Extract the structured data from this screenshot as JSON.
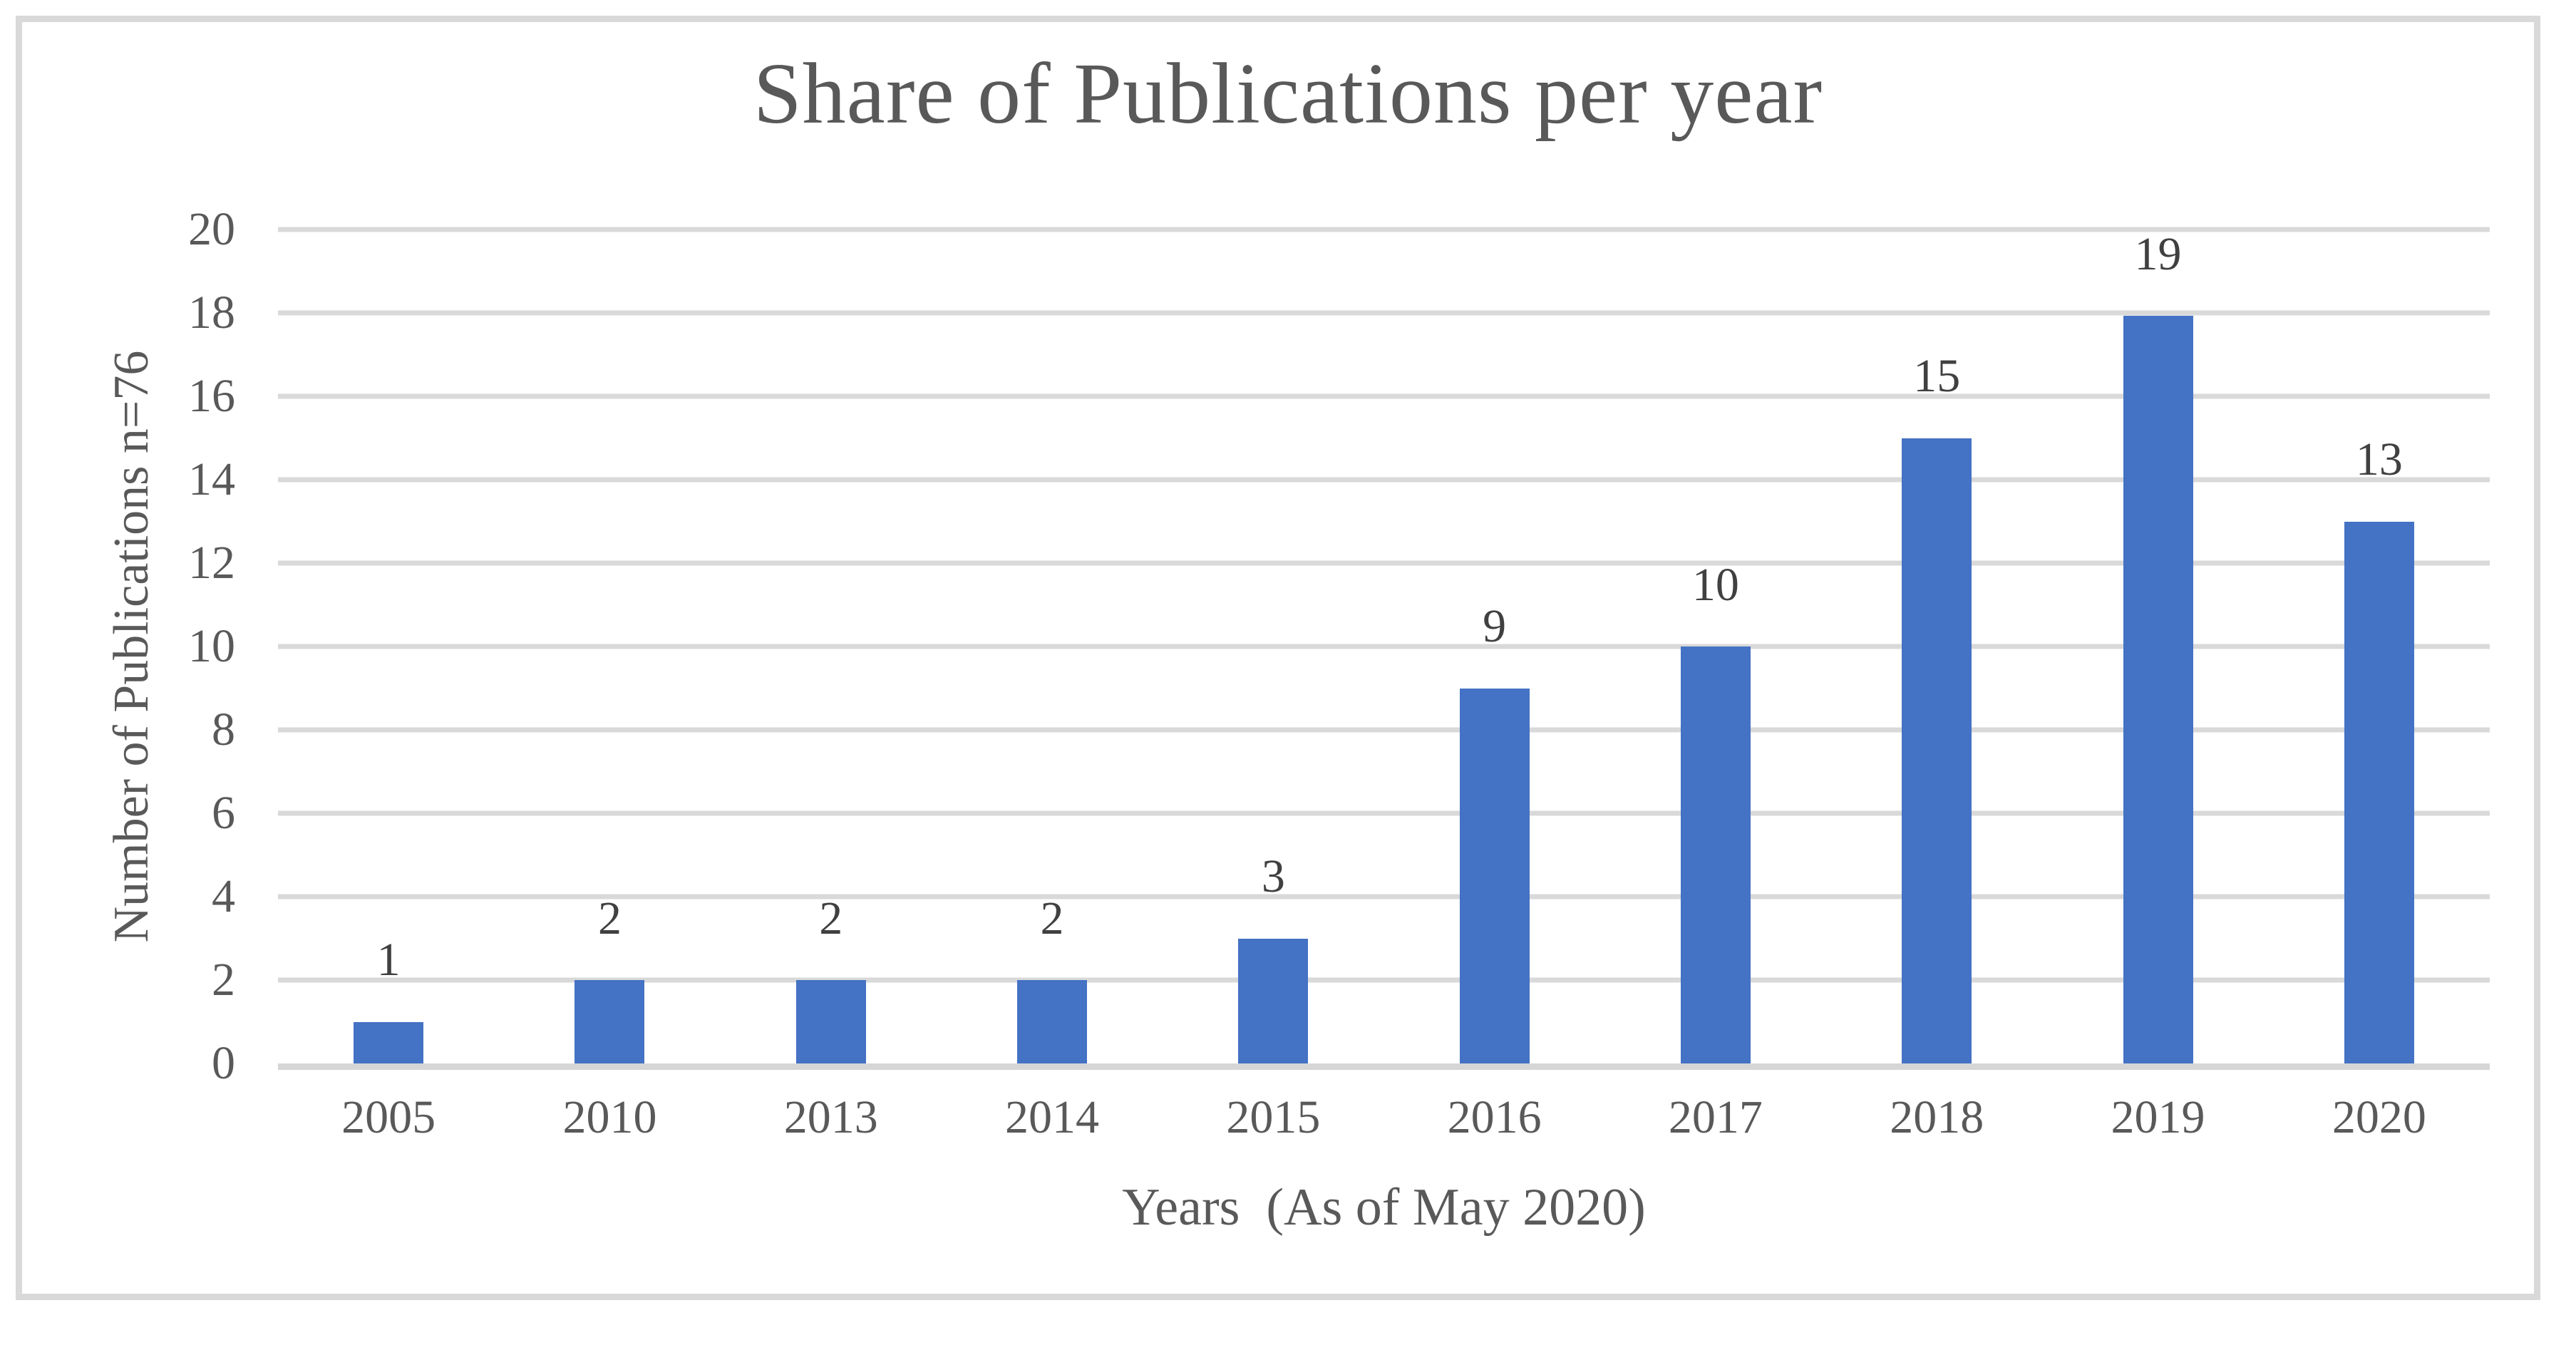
{
  "figure": {
    "background": "#ffffff",
    "border_color": "#d9d9d9",
    "title_color": "#595959",
    "axis_text_color": "#595959",
    "gridline_color": "#d9d9d9"
  },
  "chart_data": {
    "type": "bar",
    "title": "Share of Publications per year",
    "xlabel": "Years  (As of May 2020)",
    "ylabel": "Number of Publications n=76",
    "categories": [
      "2005",
      "2010",
      "2013",
      "2014",
      "2015",
      "2016",
      "2017",
      "2018",
      "2019",
      "2020"
    ],
    "values": [
      1,
      2,
      2,
      2,
      3,
      9,
      10,
      15,
      19,
      13
    ],
    "data_labels": [
      "1",
      "2",
      "2",
      "2",
      "3",
      "9",
      "10",
      "15",
      "19",
      "13"
    ],
    "total_n": 76,
    "ylim": [
      0,
      20
    ],
    "yticks": [
      0,
      2,
      4,
      6,
      8,
      10,
      12,
      14,
      16,
      18,
      20
    ],
    "grid": "horizontal-on",
    "legend": "none",
    "bar_color": "#4472C4",
    "data_label_color": "#404040"
  }
}
